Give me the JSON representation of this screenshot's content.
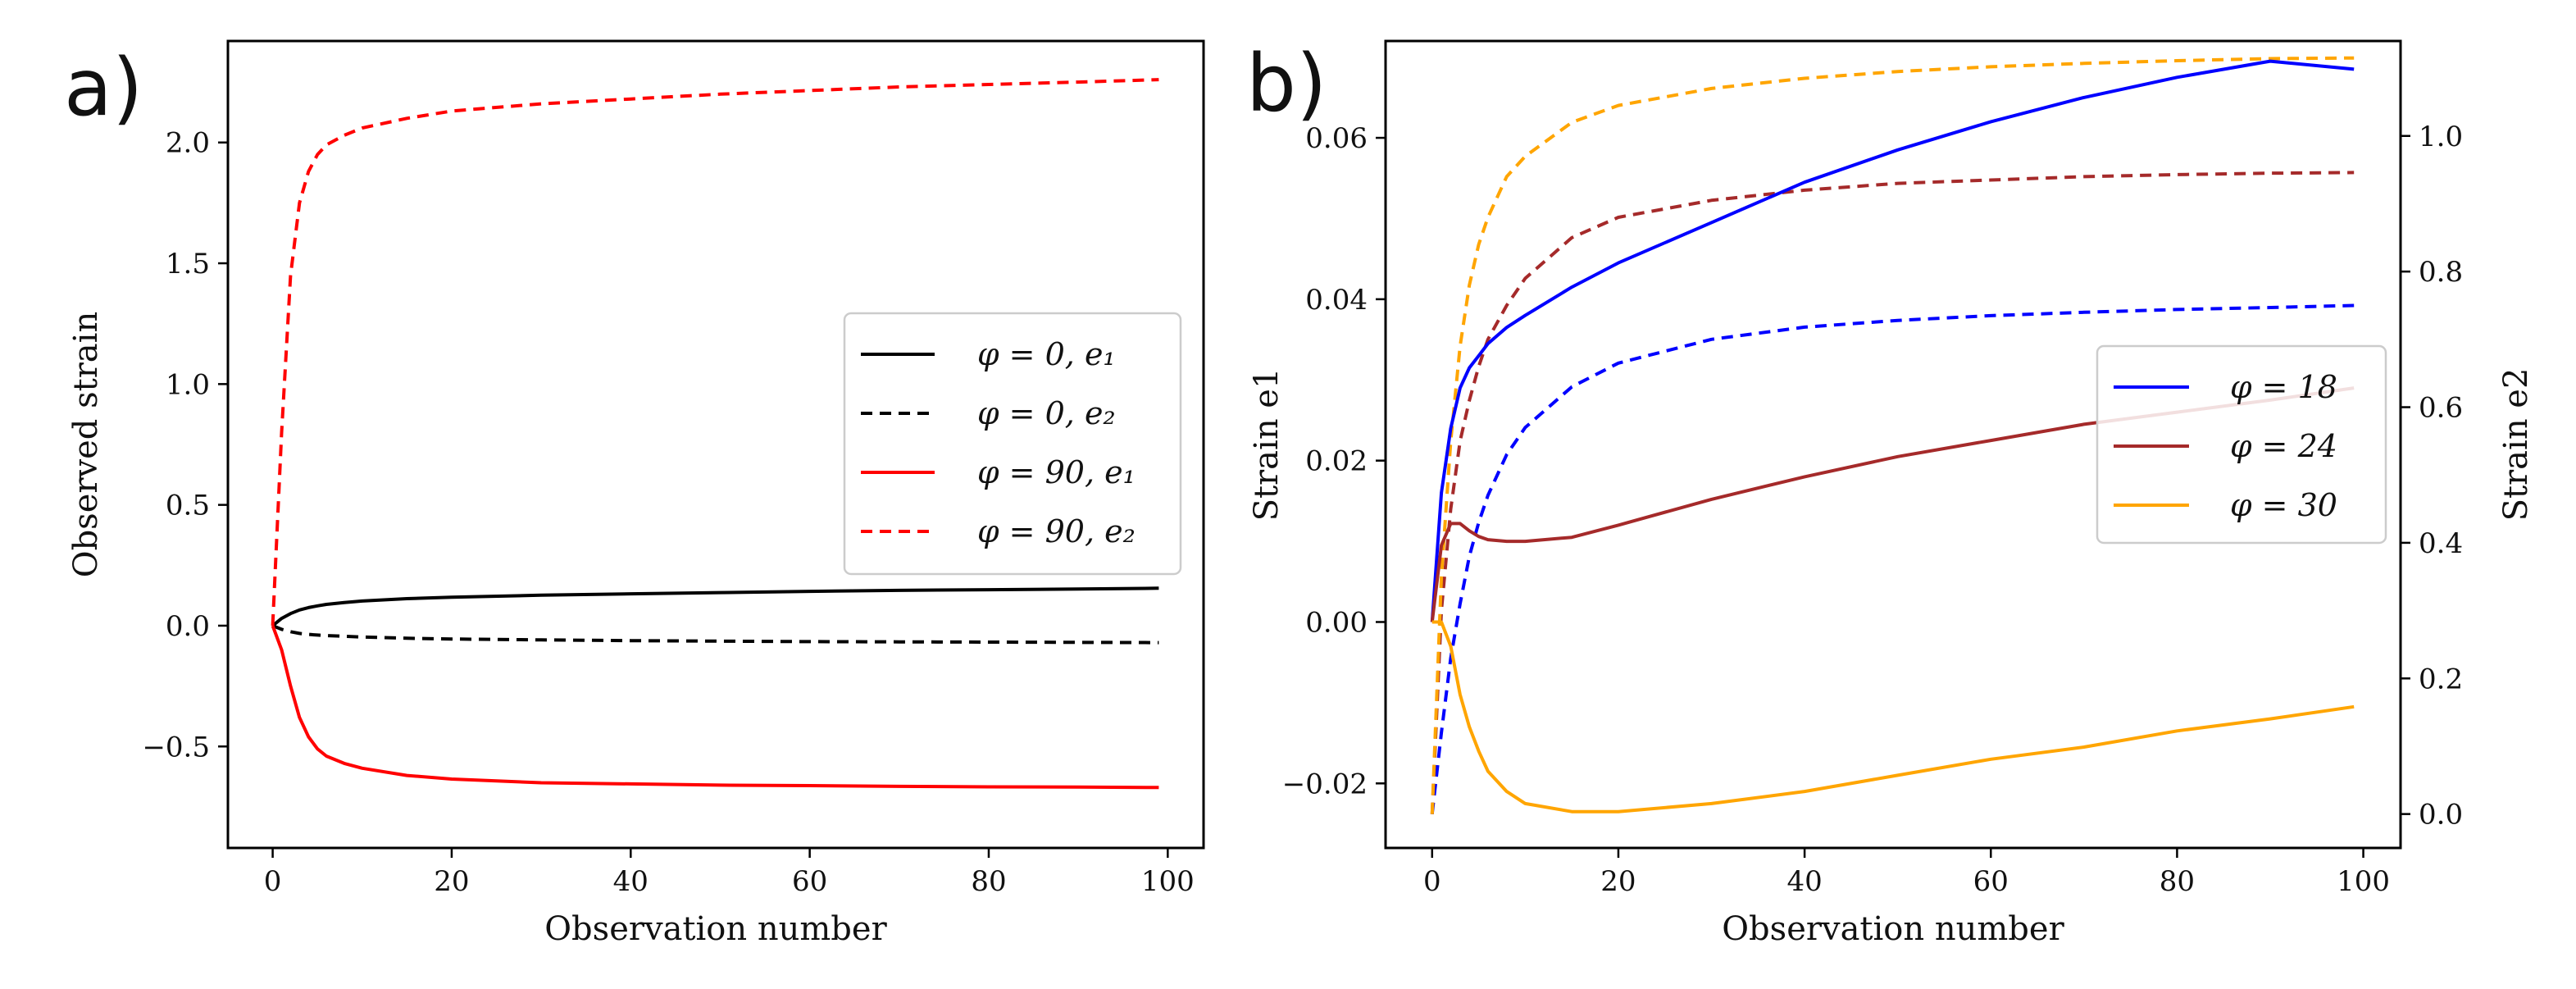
{
  "chart_data": [
    {
      "type": "line",
      "panel_label": "a)",
      "xlabel": "Observation number",
      "ylabel": "Observed strain",
      "xlim": [
        -5,
        104
      ],
      "ylim": [
        -0.92,
        2.42
      ],
      "xticks": [
        0,
        20,
        40,
        60,
        80,
        100
      ],
      "xtick_labels": [
        "0",
        "20",
        "40",
        "60",
        "80",
        "100"
      ],
      "yticks": [
        -0.5,
        0.0,
        0.5,
        1.0,
        1.5,
        2.0
      ],
      "ytick_labels": [
        "−0.5",
        "0.0",
        "0.5",
        "1.0",
        "1.5",
        "2.0"
      ],
      "legend_position": "center-right",
      "x": [
        0,
        1,
        2,
        3,
        4,
        5,
        6,
        8,
        10,
        15,
        20,
        30,
        40,
        50,
        60,
        70,
        80,
        90,
        99
      ],
      "series": [
        {
          "name": "φ = 0, e₁",
          "color": "#000000",
          "dash": "solid",
          "values": [
            0.0,
            0.03,
            0.05,
            0.065,
            0.075,
            0.082,
            0.088,
            0.096,
            0.102,
            0.112,
            0.118,
            0.126,
            0.132,
            0.137,
            0.142,
            0.146,
            0.149,
            0.152,
            0.155
          ]
        },
        {
          "name": "φ = 0, e₂",
          "color": "#000000",
          "dash": "dashed",
          "values": [
            0.0,
            -0.015,
            -0.025,
            -0.032,
            -0.036,
            -0.039,
            -0.041,
            -0.044,
            -0.047,
            -0.052,
            -0.055,
            -0.059,
            -0.062,
            -0.064,
            -0.066,
            -0.067,
            -0.068,
            -0.069,
            -0.07
          ]
        },
        {
          "name": "φ = 90, e₁",
          "color": "#ff0000",
          "dash": "solid",
          "values": [
            0.0,
            -0.1,
            -0.25,
            -0.38,
            -0.46,
            -0.51,
            -0.54,
            -0.57,
            -0.59,
            -0.62,
            -0.635,
            -0.65,
            -0.655,
            -0.66,
            -0.662,
            -0.665,
            -0.667,
            -0.668,
            -0.67
          ]
        },
        {
          "name": "φ = 90, e₂",
          "color": "#ff0000",
          "dash": "dashed",
          "values": [
            0.0,
            0.8,
            1.45,
            1.75,
            1.88,
            1.95,
            1.99,
            2.03,
            2.06,
            2.1,
            2.13,
            2.16,
            2.18,
            2.2,
            2.215,
            2.23,
            2.24,
            2.25,
            2.26
          ]
        }
      ]
    },
    {
      "type": "line",
      "panel_label": "b)",
      "xlabel": "Observation number",
      "ylabel": "Strain e1",
      "ylabel_right": "Strain e2",
      "xlim": [
        -5,
        104
      ],
      "ylim": [
        -0.028,
        0.072
      ],
      "ylim_right": [
        -0.05,
        1.14
      ],
      "xticks": [
        0,
        20,
        40,
        60,
        80,
        100
      ],
      "xtick_labels": [
        "0",
        "20",
        "40",
        "60",
        "80",
        "100"
      ],
      "yticks": [
        -0.02,
        0.0,
        0.02,
        0.04,
        0.06
      ],
      "ytick_labels": [
        "−0.02",
        "0.00",
        "0.02",
        "0.04",
        "0.06"
      ],
      "yticks_right": [
        0.0,
        0.2,
        0.4,
        0.6,
        0.8,
        1.0
      ],
      "ytick_labels_right": [
        "0.0",
        "0.2",
        "0.4",
        "0.6",
        "0.8",
        "1.0"
      ],
      "legend_position": "center-right",
      "x": [
        0,
        1,
        2,
        3,
        4,
        5,
        6,
        8,
        10,
        15,
        20,
        30,
        40,
        50,
        60,
        70,
        80,
        90,
        99
      ],
      "series_e1": [
        {
          "name": "φ = 18",
          "color": "#0000ff",
          "values": [
            0.0,
            0.016,
            0.024,
            0.029,
            0.0315,
            0.033,
            0.0345,
            0.0365,
            0.038,
            0.0415,
            0.0445,
            0.0495,
            0.0545,
            0.0585,
            0.062,
            0.065,
            0.0675,
            0.0695,
            0.0685
          ]
        },
        {
          "name": "φ = 24",
          "color": "#a52a2a",
          "values": [
            0.0,
            0.0095,
            0.0122,
            0.0122,
            0.0113,
            0.0106,
            0.0102,
            0.01,
            0.01,
            0.0105,
            0.012,
            0.0152,
            0.018,
            0.0205,
            0.0225,
            0.0245,
            0.026,
            0.0275,
            0.029
          ]
        },
        {
          "name": "φ = 30",
          "color": "#ffa500",
          "values": [
            0.0,
            0.0,
            -0.003,
            -0.009,
            -0.013,
            -0.016,
            -0.0185,
            -0.021,
            -0.0225,
            -0.0235,
            -0.0235,
            -0.0225,
            -0.021,
            -0.019,
            -0.017,
            -0.0155,
            -0.0135,
            -0.012,
            -0.0105
          ]
        }
      ],
      "series_e2": [
        {
          "name": "φ = 18, e₂",
          "color": "#0000ff",
          "axis": "right",
          "values": [
            0.0,
            0.12,
            0.23,
            0.31,
            0.38,
            0.43,
            0.47,
            0.53,
            0.57,
            0.63,
            0.665,
            0.7,
            0.718,
            0.728,
            0.735,
            0.74,
            0.744,
            0.747,
            0.75
          ]
        },
        {
          "name": "φ = 24, e₂",
          "color": "#a52a2a",
          "axis": "right",
          "values": [
            0.0,
            0.3,
            0.45,
            0.55,
            0.61,
            0.66,
            0.7,
            0.75,
            0.79,
            0.85,
            0.88,
            0.905,
            0.92,
            0.93,
            0.935,
            0.94,
            0.943,
            0.945,
            0.946
          ]
        },
        {
          "name": "φ = 30, e₂",
          "color": "#ffa500",
          "axis": "right",
          "values": [
            0.0,
            0.35,
            0.55,
            0.69,
            0.78,
            0.84,
            0.88,
            0.94,
            0.97,
            1.02,
            1.045,
            1.07,
            1.085,
            1.095,
            1.102,
            1.107,
            1.111,
            1.114,
            1.115
          ]
        }
      ],
      "legend": [
        "φ = 18",
        "φ = 24",
        "φ = 30"
      ]
    }
  ],
  "legend_a": {
    "items": [
      {
        "color": "#000000",
        "dash": "solid",
        "label": "φ = 0, e₁"
      },
      {
        "color": "#000000",
        "dash": "dashed",
        "label": "φ = 0, e₂"
      },
      {
        "color": "#ff0000",
        "dash": "solid",
        "label": "φ = 90, e₁"
      },
      {
        "color": "#ff0000",
        "dash": "dashed",
        "label": "φ = 90, e₂"
      }
    ]
  },
  "legend_b": {
    "items": [
      {
        "color": "#0000ff",
        "label": "φ = 18"
      },
      {
        "color": "#a52a2a",
        "label": "φ = 24"
      },
      {
        "color": "#ffa500",
        "label": "φ = 30"
      }
    ]
  }
}
